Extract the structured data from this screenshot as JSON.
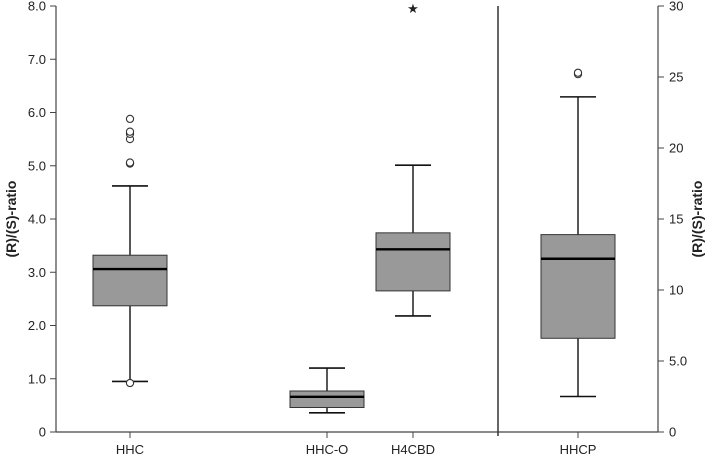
{
  "chart_data": [
    {
      "type": "box",
      "ylabel": "(R)/(S)-ratio",
      "ylim": [
        0,
        8
      ],
      "yticks": [
        "0",
        "1.0",
        "2.0",
        "3.0",
        "4.0",
        "5.0",
        "6.0",
        "7.0",
        "8.0"
      ],
      "ytick_values": [
        0,
        1,
        2,
        3,
        4,
        5,
        6,
        7,
        8
      ],
      "categories": [
        "HHC",
        "HHC-O",
        "H4CBD"
      ],
      "boxes": [
        {
          "category": "HHC",
          "whisker_low": 0.95,
          "q1": 2.37,
          "median": 3.06,
          "q3": 3.32,
          "whisker_high": 4.62,
          "outliers": [
            0.92,
            5.04,
            5.06,
            5.5,
            5.6,
            5.64,
            5.88
          ],
          "extremes": []
        },
        {
          "category": "HHC-O",
          "whisker_low": 0.36,
          "q1": 0.46,
          "median": 0.66,
          "q3": 0.77,
          "whisker_high": 1.2,
          "outliers": [],
          "extremes": []
        },
        {
          "category": "H4CBD",
          "whisker_low": 2.18,
          "q1": 2.65,
          "median": 3.43,
          "q3": 3.74,
          "whisker_high": 5.01,
          "outliers": [],
          "extremes": [
            7.96
          ]
        }
      ],
      "grid": false
    },
    {
      "type": "box",
      "ylabel": "(R)/(S)-ratio",
      "ylim": [
        0,
        30
      ],
      "yticks": [
        "0",
        "5.0",
        "10",
        "15",
        "20",
        "25",
        "30"
      ],
      "ytick_values": [
        0,
        5,
        10,
        15,
        20,
        25,
        30
      ],
      "categories": [
        "HHCP"
      ],
      "boxes": [
        {
          "category": "HHCP",
          "whisker_low": 2.5,
          "q1": 6.6,
          "median": 12.2,
          "q3": 13.9,
          "whisker_high": 23.6,
          "outliers": [
            25.2,
            25.3
          ],
          "extremes": []
        }
      ],
      "grid": false
    }
  ],
  "colors": {
    "box_fill": "#999999",
    "line": "#111111",
    "axis": "#444444"
  }
}
